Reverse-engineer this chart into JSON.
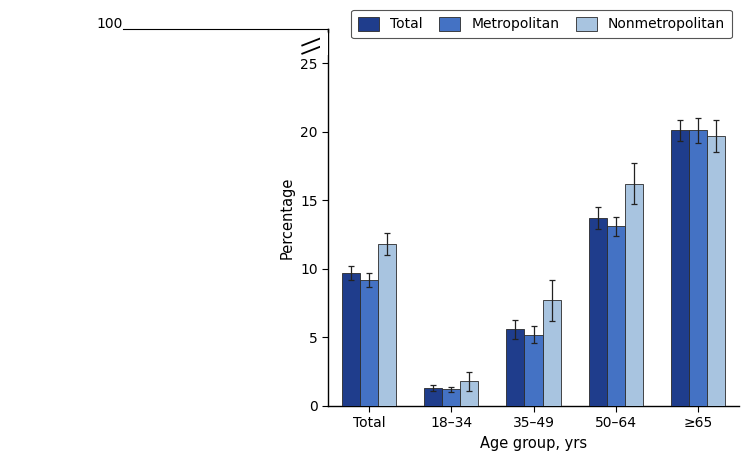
{
  "categories": [
    "Total",
    "18–34",
    "35–49",
    "50–64",
    "≥65"
  ],
  "series": {
    "Total": {
      "values": [
        9.7,
        1.3,
        5.6,
        13.7,
        20.1
      ],
      "errors": [
        0.5,
        0.2,
        0.7,
        0.8,
        0.8
      ],
      "color": "#1f3d8c"
    },
    "Metropolitan": {
      "values": [
        9.2,
        1.2,
        5.2,
        13.1,
        20.1
      ],
      "errors": [
        0.5,
        0.2,
        0.6,
        0.7,
        0.9
      ],
      "color": "#4472c4"
    },
    "Nonmetropolitan": {
      "values": [
        11.8,
        1.8,
        7.7,
        16.2,
        19.7
      ],
      "errors": [
        0.8,
        0.7,
        1.5,
        1.5,
        1.2
      ],
      "color": "#a8c4e0"
    }
  },
  "xlabel": "Age group, yrs",
  "ylabel": "Percentage",
  "yticks": [
    0,
    5,
    10,
    15,
    20,
    25
  ],
  "bar_width": 0.22,
  "legend_labels": [
    "Total",
    "Metropolitan",
    "Nonmetropolitan"
  ],
  "edge_color": "#2a2a2a",
  "background_color": "#ffffff"
}
